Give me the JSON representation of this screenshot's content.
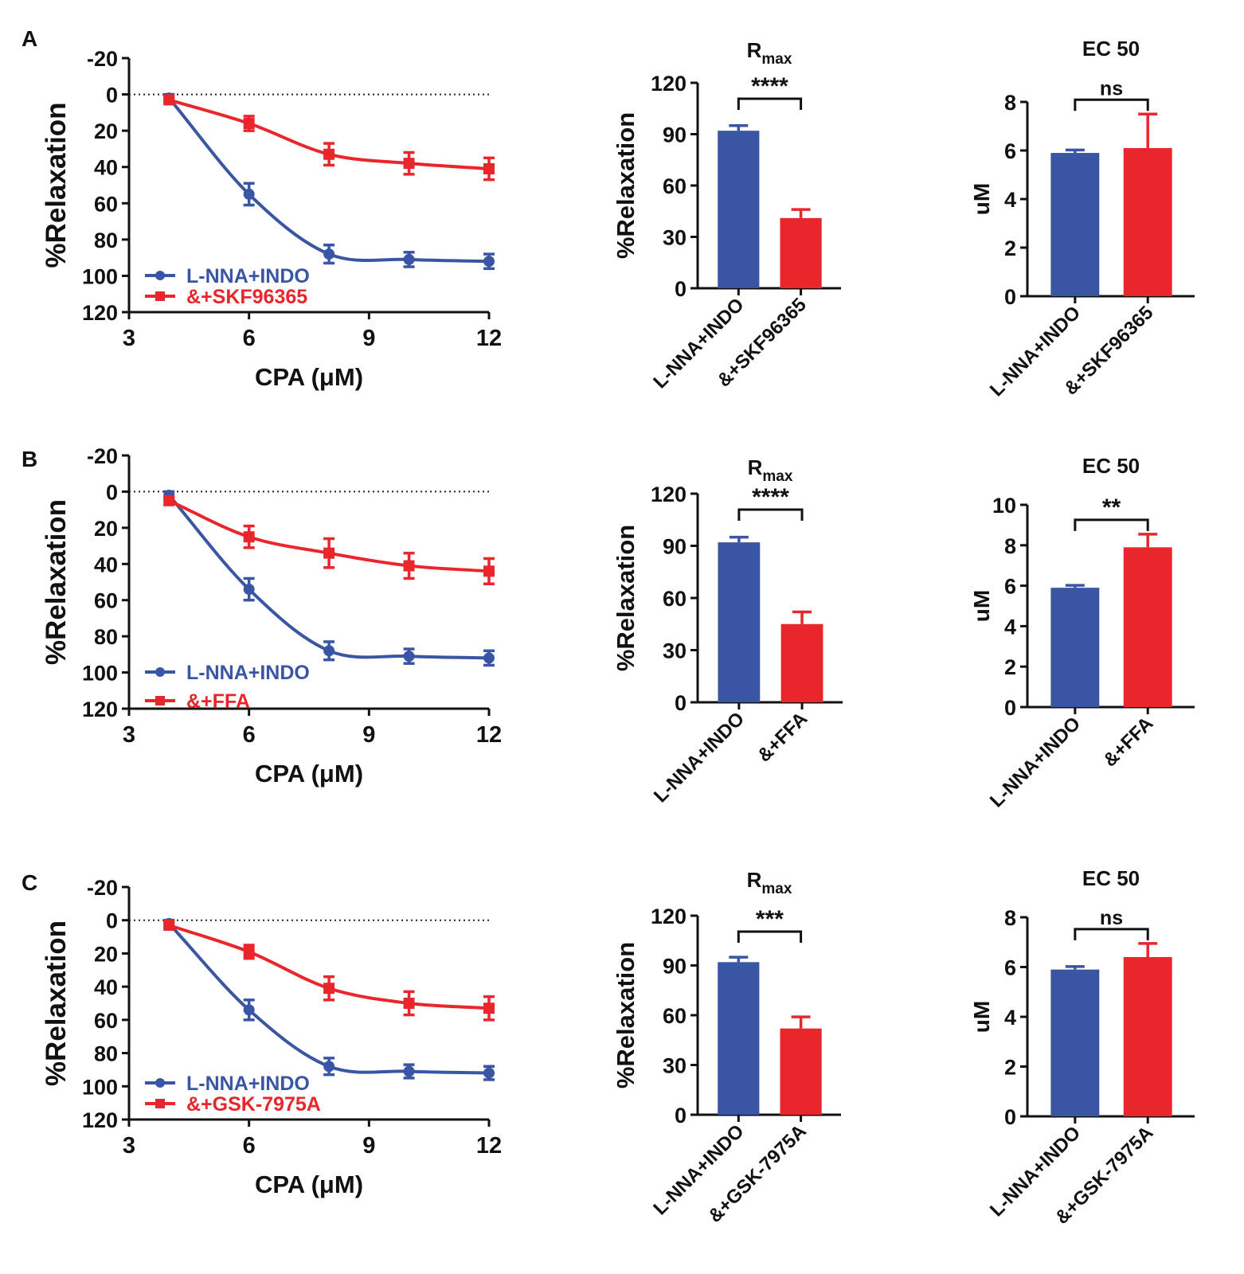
{
  "colors": {
    "blue": "#3a55a4",
    "red": "#e8262b",
    "axis": "#111111"
  },
  "chart_data": [
    {
      "panel": "A",
      "type": "line",
      "xlabel": "CPA (μM)",
      "ylabel": "%Relaxation",
      "xlim": [
        3,
        12
      ],
      "ylim": [
        -20,
        120
      ],
      "y_inverted": true,
      "xticks": [
        "3",
        "6",
        "9",
        "12"
      ],
      "yticks": [
        "-20",
        "0",
        "20",
        "40",
        "60",
        "80",
        "100",
        "120"
      ],
      "reference_line_y": 0,
      "legend_position": "bottom-left",
      "series": [
        {
          "name": "L-NNA+INDO",
          "color": "blue",
          "marker": "circle",
          "x": [
            4,
            6,
            8,
            10,
            12
          ],
          "y": [
            2,
            55,
            88,
            91,
            92
          ],
          "err": [
            2,
            6,
            5,
            4,
            4
          ]
        },
        {
          "name": "&+SKF96365",
          "color": "red",
          "marker": "square",
          "x": [
            4,
            6,
            8,
            10,
            12
          ],
          "y": [
            3,
            16,
            33,
            38,
            41
          ],
          "err": [
            2,
            4,
            6,
            6,
            6
          ]
        }
      ]
    },
    {
      "panel": "A",
      "type": "bar",
      "title": "R",
      "title_sub": "max",
      "ylabel": "%Relaxation",
      "ylim": [
        0,
        120
      ],
      "yticks": [
        "0",
        "30",
        "60",
        "90",
        "120"
      ],
      "categories": [
        "L-NNA+INDO",
        "&+SKF96365"
      ],
      "values": [
        92,
        41
      ],
      "err": [
        3,
        5
      ],
      "bar_colors": [
        "blue",
        "red"
      ],
      "significance": "****"
    },
    {
      "panel": "A",
      "type": "bar",
      "title": "EC 50",
      "title_sub": "",
      "ylabel": "uM",
      "ylim": [
        0,
        8
      ],
      "yticks": [
        "0",
        "2",
        "4",
        "6",
        "8"
      ],
      "categories": [
        "L-NNA+INDO",
        "&+SKF96365"
      ],
      "values": [
        5.9,
        6.1
      ],
      "err": [
        0.12,
        1.4
      ],
      "bar_colors": [
        "blue",
        "red"
      ],
      "significance": "ns"
    },
    {
      "panel": "B",
      "type": "line",
      "xlabel": "CPA (μM)",
      "ylabel": "%Relaxation",
      "xlim": [
        3,
        12
      ],
      "ylim": [
        -20,
        120
      ],
      "y_inverted": true,
      "xticks": [
        "3",
        "6",
        "9",
        "12"
      ],
      "yticks": [
        "-20",
        "0",
        "20",
        "40",
        "60",
        "80",
        "100",
        "120"
      ],
      "reference_line_y": 0,
      "legend_position": "bottom-left",
      "series": [
        {
          "name": "L-NNA+INDO",
          "color": "blue",
          "marker": "circle",
          "x": [
            4,
            6,
            8,
            10,
            12
          ],
          "y": [
            2,
            54,
            88,
            91,
            92
          ],
          "err": [
            2,
            6,
            5,
            4,
            4
          ]
        },
        {
          "name": "&+FFA",
          "color": "red",
          "marker": "square",
          "x": [
            4,
            6,
            8,
            10,
            12
          ],
          "y": [
            5,
            25,
            34,
            41,
            44
          ],
          "err": [
            2,
            6,
            8,
            7,
            7
          ]
        }
      ]
    },
    {
      "panel": "B",
      "type": "bar",
      "title": "R",
      "title_sub": "max",
      "ylabel": "%Relaxation",
      "ylim": [
        0,
        120
      ],
      "yticks": [
        "0",
        "30",
        "60",
        "90",
        "120"
      ],
      "categories": [
        "L-NNA+INDO",
        "&+FFA"
      ],
      "values": [
        92,
        45
      ],
      "err": [
        3,
        7
      ],
      "bar_colors": [
        "blue",
        "red"
      ],
      "significance": "****"
    },
    {
      "panel": "B",
      "type": "bar",
      "title": "EC 50",
      "title_sub": "",
      "ylabel": "uM",
      "ylim": [
        0,
        10
      ],
      "yticks": [
        "0",
        "2",
        "4",
        "6",
        "8",
        "10"
      ],
      "categories": [
        "L-NNA+INDO",
        "&+FFA"
      ],
      "values": [
        5.9,
        7.9
      ],
      "err": [
        0.12,
        0.65
      ],
      "bar_colors": [
        "blue",
        "red"
      ],
      "significance": "**"
    },
    {
      "panel": "C",
      "type": "line",
      "xlabel": "CPA (μM)",
      "ylabel": "%Relaxation",
      "xlim": [
        3,
        12
      ],
      "ylim": [
        -20,
        120
      ],
      "y_inverted": true,
      "xticks": [
        "3",
        "6",
        "9",
        "12"
      ],
      "yticks": [
        "-20",
        "0",
        "20",
        "40",
        "60",
        "80",
        "100",
        "120"
      ],
      "reference_line_y": 0,
      "legend_position": "bottom-left",
      "series": [
        {
          "name": "L-NNA+INDO",
          "color": "blue",
          "marker": "circle",
          "x": [
            4,
            6,
            8,
            10,
            12
          ],
          "y": [
            2,
            54,
            88,
            91,
            92
          ],
          "err": [
            2,
            6,
            5,
            4,
            4
          ]
        },
        {
          "name": "&+GSK-7975A",
          "color": "red",
          "marker": "square",
          "x": [
            4,
            6,
            8,
            10,
            12
          ],
          "y": [
            3,
            19,
            41,
            50,
            53
          ],
          "err": [
            2,
            4,
            7,
            7,
            7
          ]
        }
      ]
    },
    {
      "panel": "C",
      "type": "bar",
      "title": "R",
      "title_sub": "max",
      "ylabel": "%Relaxation",
      "ylim": [
        0,
        120
      ],
      "yticks": [
        "0",
        "30",
        "60",
        "90",
        "120"
      ],
      "categories": [
        "L-NNA+INDO",
        "&+GSK-7975A"
      ],
      "values": [
        92,
        52
      ],
      "err": [
        3,
        7
      ],
      "bar_colors": [
        "blue",
        "red"
      ],
      "significance": "***"
    },
    {
      "panel": "C",
      "type": "bar",
      "title": "EC 50",
      "title_sub": "",
      "ylabel": "uM",
      "ylim": [
        0,
        8
      ],
      "yticks": [
        "0",
        "2",
        "4",
        "6",
        "8"
      ],
      "categories": [
        "L-NNA+INDO",
        "&+GSK-7975A"
      ],
      "values": [
        5.9,
        6.4
      ],
      "err": [
        0.12,
        0.55
      ],
      "bar_colors": [
        "blue",
        "red"
      ],
      "significance": "ns"
    }
  ]
}
